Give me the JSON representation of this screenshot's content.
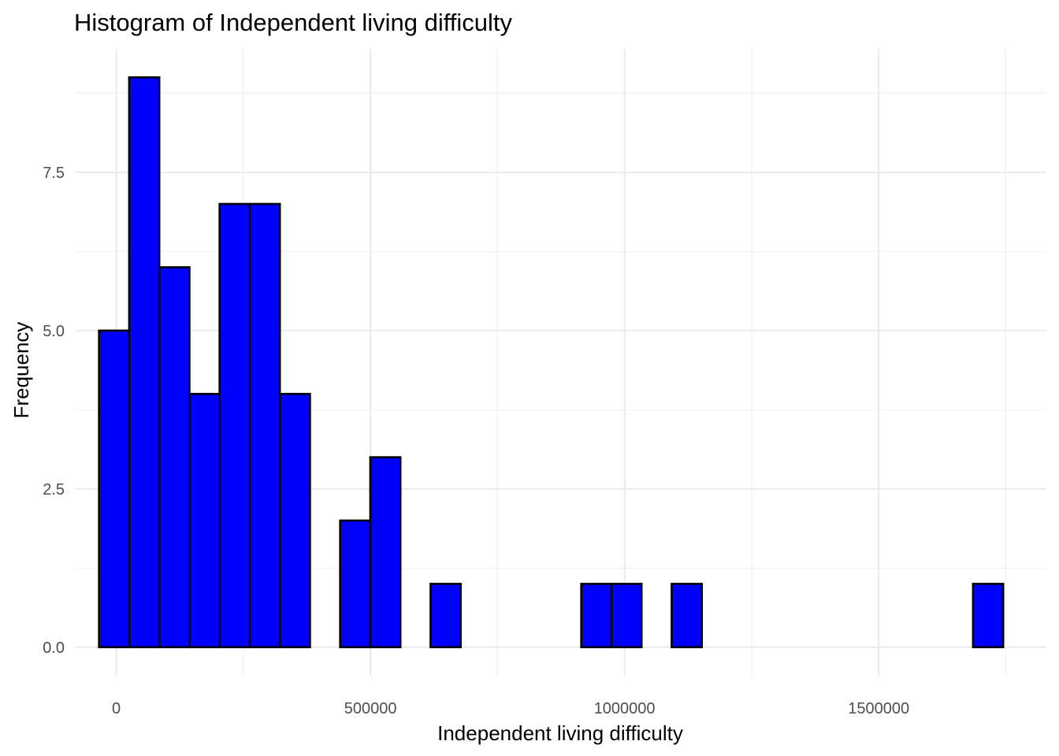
{
  "chart_data": {
    "type": "bar",
    "title": "Histogram of Independent living difficulty",
    "xlabel": "Independent living difficulty",
    "ylabel": "Frequency",
    "bar_fill": "#0000ff",
    "bar_outline": "#000000",
    "grid": true,
    "legend": "none",
    "xlim": [
      -80000,
      1830000
    ],
    "ylim": [
      -0.45,
      9.45
    ],
    "x_ticks": [
      0,
      500000,
      1000000,
      1500000
    ],
    "x_tick_labels": [
      "0",
      "500000",
      "1000000",
      "1500000"
    ],
    "y_ticks": [
      0,
      2.5,
      5,
      7.5
    ],
    "y_tick_labels": [
      "0.0",
      "2.5",
      "5.0",
      "7.5"
    ],
    "bin_width": 59300,
    "bins": [
      {
        "x0": -34000,
        "x1": 25300,
        "count": 5
      },
      {
        "x0": 25300,
        "x1": 84600,
        "count": 9
      },
      {
        "x0": 84600,
        "x1": 143900,
        "count": 6
      },
      {
        "x0": 143900,
        "x1": 203200,
        "count": 4
      },
      {
        "x0": 203200,
        "x1": 262500,
        "count": 7
      },
      {
        "x0": 262500,
        "x1": 321800,
        "count": 7
      },
      {
        "x0": 321800,
        "x1": 381100,
        "count": 4
      },
      {
        "x0": 381100,
        "x1": 440400,
        "count": 0
      },
      {
        "x0": 440400,
        "x1": 499700,
        "count": 2
      },
      {
        "x0": 499700,
        "x1": 559000,
        "count": 3
      },
      {
        "x0": 559000,
        "x1": 618300,
        "count": 0
      },
      {
        "x0": 618300,
        "x1": 677600,
        "count": 1
      },
      {
        "x0": 677600,
        "x1": 736900,
        "count": 0
      },
      {
        "x0": 736900,
        "x1": 796200,
        "count": 0
      },
      {
        "x0": 796200,
        "x1": 855500,
        "count": 0
      },
      {
        "x0": 855500,
        "x1": 914800,
        "count": 0
      },
      {
        "x0": 914800,
        "x1": 974100,
        "count": 1
      },
      {
        "x0": 974100,
        "x1": 1033400,
        "count": 1
      },
      {
        "x0": 1033400,
        "x1": 1092700,
        "count": 0
      },
      {
        "x0": 1092700,
        "x1": 1152000,
        "count": 1
      },
      {
        "x0": 1152000,
        "x1": 1211300,
        "count": 0
      },
      {
        "x0": 1211300,
        "x1": 1270600,
        "count": 0
      },
      {
        "x0": 1270600,
        "x1": 1329900,
        "count": 0
      },
      {
        "x0": 1329900,
        "x1": 1389200,
        "count": 0
      },
      {
        "x0": 1389200,
        "x1": 1448500,
        "count": 0
      },
      {
        "x0": 1448500,
        "x1": 1507800,
        "count": 0
      },
      {
        "x0": 1507800,
        "x1": 1567100,
        "count": 0
      },
      {
        "x0": 1567100,
        "x1": 1626400,
        "count": 0
      },
      {
        "x0": 1626400,
        "x1": 1685700,
        "count": 0
      },
      {
        "x0": 1685700,
        "x1": 1745000,
        "count": 1
      }
    ]
  }
}
